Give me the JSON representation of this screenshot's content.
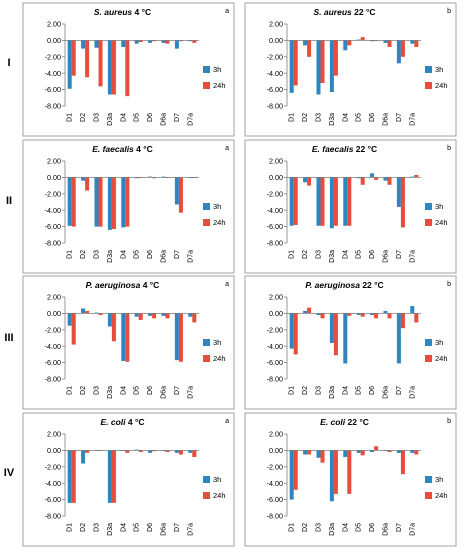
{
  "rows": [
    {
      "label": "I"
    },
    {
      "label": "II"
    },
    {
      "label": "III"
    },
    {
      "label": "IV"
    }
  ],
  "legend": {
    "series1": "3h",
    "series2": "24h"
  },
  "colors": {
    "series1": "#2e86c1",
    "series2": "#e74c3c",
    "frame": "#8c8c8c",
    "axis": "#7f7f7f"
  },
  "chart_data": [
    {
      "type": "bar",
      "species": "S. aureus",
      "temp": "4 °C",
      "corner": "a",
      "categories": [
        "D1",
        "D2",
        "D3",
        "D3a",
        "D4",
        "D5",
        "D6",
        "D6a",
        "D7",
        "D7a"
      ],
      "ylim": [
        -8,
        2
      ],
      "yticks": [
        2,
        0,
        -2,
        -4,
        -6,
        -8
      ],
      "series": [
        {
          "name": "3h",
          "values": [
            -5.9,
            -1.0,
            -0.9,
            -6.6,
            -0.8,
            -0.4,
            -0.3,
            -0.3,
            -1.0,
            -0.1
          ]
        },
        {
          "name": "24h",
          "values": [
            -4.3,
            -4.5,
            -5.6,
            -6.6,
            -6.8,
            -0.2,
            -0.1,
            -0.4,
            -0.1,
            -0.3
          ]
        }
      ]
    },
    {
      "type": "bar",
      "species": "S. aureus",
      "temp": "22 °C",
      "corner": "b",
      "categories": [
        "D1",
        "D2",
        "D3",
        "D3a",
        "D4",
        "D5",
        "D6",
        "D6a",
        "D7",
        "D7a"
      ],
      "ylim": [
        -8,
        2
      ],
      "yticks": [
        2,
        0,
        -2,
        -4,
        -6,
        -8
      ],
      "series": [
        {
          "name": "3h",
          "values": [
            -6.4,
            -0.6,
            -6.6,
            -6.3,
            -1.2,
            0.1,
            -0.1,
            -0.3,
            -2.8,
            -0.4
          ]
        },
        {
          "name": "24h",
          "values": [
            -5.5,
            -2.0,
            -5.2,
            -4.3,
            -0.6,
            0.4,
            0.0,
            -0.8,
            -2.0,
            -0.8
          ]
        }
      ]
    },
    {
      "type": "bar",
      "species": "E. faecalis",
      "temp": "4 °C",
      "corner": "a",
      "categories": [
        "D1",
        "D2",
        "D3",
        "D3a",
        "D4",
        "D5",
        "D6",
        "D6a",
        "D7",
        "D7a"
      ],
      "ylim": [
        -8,
        2
      ],
      "yticks": [
        2,
        0,
        -2,
        -4,
        -6,
        -8
      ],
      "series": [
        {
          "name": "3h",
          "values": [
            -5.9,
            -0.4,
            -6.0,
            -6.4,
            -6.1,
            -0.1,
            0.1,
            0.1,
            -3.3,
            0.0
          ]
        },
        {
          "name": "24h",
          "values": [
            -6.0,
            -1.6,
            -6.0,
            -6.3,
            -6.0,
            0.0,
            -0.1,
            0.0,
            -4.3,
            0.0
          ]
        }
      ]
    },
    {
      "type": "bar",
      "species": "E. faecalis",
      "temp": "22 °C",
      "corner": "b",
      "categories": [
        "D1",
        "D2",
        "D3",
        "D3a",
        "D4",
        "D5",
        "D6",
        "D6a",
        "D7",
        "D7a"
      ],
      "ylim": [
        -8,
        2
      ],
      "yticks": [
        2,
        0,
        -2,
        -4,
        -6,
        -8
      ],
      "series": [
        {
          "name": "3h",
          "values": [
            -5.9,
            -0.6,
            -5.9,
            -6.2,
            -5.9,
            -0.1,
            0.5,
            -0.4,
            -3.6,
            0.1
          ]
        },
        {
          "name": "24h",
          "values": [
            -5.8,
            -1.0,
            -5.9,
            -5.9,
            -5.9,
            -0.9,
            -0.3,
            -0.9,
            -6.1,
            0.3
          ]
        }
      ]
    },
    {
      "type": "bar",
      "species": "P. aeruginosa",
      "temp": "4 °C",
      "corner": "a",
      "categories": [
        "D1",
        "D2",
        "D3",
        "D3a",
        "D4",
        "D5",
        "D6",
        "D6a",
        "D7",
        "D7a"
      ],
      "ylim": [
        -8,
        2
      ],
      "yticks": [
        2,
        0,
        -2,
        -4,
        -6,
        -8
      ],
      "series": [
        {
          "name": "3h",
          "values": [
            -1.5,
            0.6,
            0.1,
            -1.6,
            -5.8,
            -0.4,
            -0.3,
            -0.3,
            -5.7,
            -0.4
          ]
        },
        {
          "name": "24h",
          "values": [
            -3.8,
            0.3,
            -0.2,
            -3.4,
            -5.9,
            -0.8,
            -0.6,
            -0.6,
            -5.9,
            -1.1
          ]
        }
      ]
    },
    {
      "type": "bar",
      "species": "P. aeruginosa",
      "temp": "22 °C",
      "corner": "b",
      "categories": [
        "D1",
        "D2",
        "D3",
        "D3a",
        "D4",
        "D5",
        "D6",
        "D6a",
        "D7",
        "D7a"
      ],
      "ylim": [
        -8,
        2
      ],
      "yticks": [
        2,
        0,
        -2,
        -4,
        -6,
        -8
      ],
      "series": [
        {
          "name": "3h",
          "values": [
            -4.3,
            0.3,
            -0.2,
            -3.6,
            -6.1,
            -0.2,
            -0.2,
            0.3,
            -6.1,
            0.9
          ]
        },
        {
          "name": "24h",
          "values": [
            -5.0,
            0.7,
            -0.6,
            -5.1,
            -0.3,
            -0.4,
            -0.6,
            -0.6,
            -1.8,
            -1.1
          ]
        }
      ]
    },
    {
      "type": "bar",
      "species": "E. coli",
      "temp": "4 °C",
      "corner": "a",
      "categories": [
        "D1",
        "D2",
        "D3",
        "D3a",
        "D4",
        "D5",
        "D6",
        "D6a",
        "D7",
        "D7a"
      ],
      "ylim": [
        -8,
        2
      ],
      "yticks": [
        2,
        0,
        -2,
        -4,
        -6,
        -8
      ],
      "series": [
        {
          "name": "3h",
          "values": [
            -6.4,
            -1.6,
            0.0,
            -6.4,
            0.0,
            0.1,
            -0.3,
            0.0,
            -0.3,
            -0.3
          ]
        },
        {
          "name": "24h",
          "values": [
            -6.4,
            -0.3,
            0.0,
            -6.4,
            -0.3,
            -0.2,
            -0.1,
            -0.2,
            -0.5,
            -0.8
          ]
        }
      ]
    },
    {
      "type": "bar",
      "species": "E. coli",
      "temp": "22 °C",
      "corner": "b",
      "categories": [
        "D1",
        "D2",
        "D3",
        "D3a",
        "D4",
        "D5",
        "D6",
        "D6a",
        "D7",
        "D7a"
      ],
      "ylim": [
        -8,
        2
      ],
      "yticks": [
        2,
        0,
        -2,
        -4,
        -6,
        -8
      ],
      "series": [
        {
          "name": "3h",
          "values": [
            -6.0,
            -0.5,
            -0.9,
            -6.2,
            -0.8,
            -0.3,
            -0.2,
            0.0,
            -0.3,
            -0.3
          ]
        },
        {
          "name": "24h",
          "values": [
            -4.8,
            -0.5,
            -1.5,
            -5.3,
            -5.3,
            -0.6,
            0.5,
            -0.2,
            -2.9,
            -0.5
          ]
        }
      ]
    }
  ]
}
